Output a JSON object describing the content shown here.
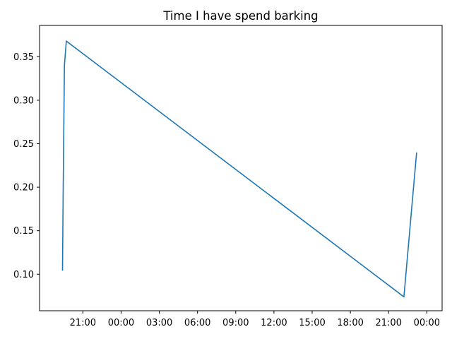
{
  "chart_data": {
    "type": "line",
    "title": "Time I have spend barking",
    "xlabel": "",
    "ylabel": "",
    "x_tick_labels": [
      "21:00",
      "00:00",
      "03:00",
      "06:00",
      "09:00",
      "12:00",
      "15:00",
      "18:00",
      "21:00",
      "00:00"
    ],
    "y_tick_labels": [
      "0.10",
      "0.15",
      "0.20",
      "0.25",
      "0.30",
      "0.35"
    ],
    "y_ticks": [
      0.1,
      0.15,
      0.2,
      0.25,
      0.3,
      0.35
    ],
    "ylim": [
      0.058,
      0.386
    ],
    "xlim_hours": [
      17.6,
      49.2
    ],
    "grid": false,
    "series": [
      {
        "color": "#1f77b4",
        "x_hours": [
          19.4,
          19.45,
          19.55,
          19.7,
          46.2,
          47.2
        ],
        "values": [
          0.104,
          0.19,
          0.34,
          0.368,
          0.074,
          0.24
        ]
      }
    ]
  }
}
